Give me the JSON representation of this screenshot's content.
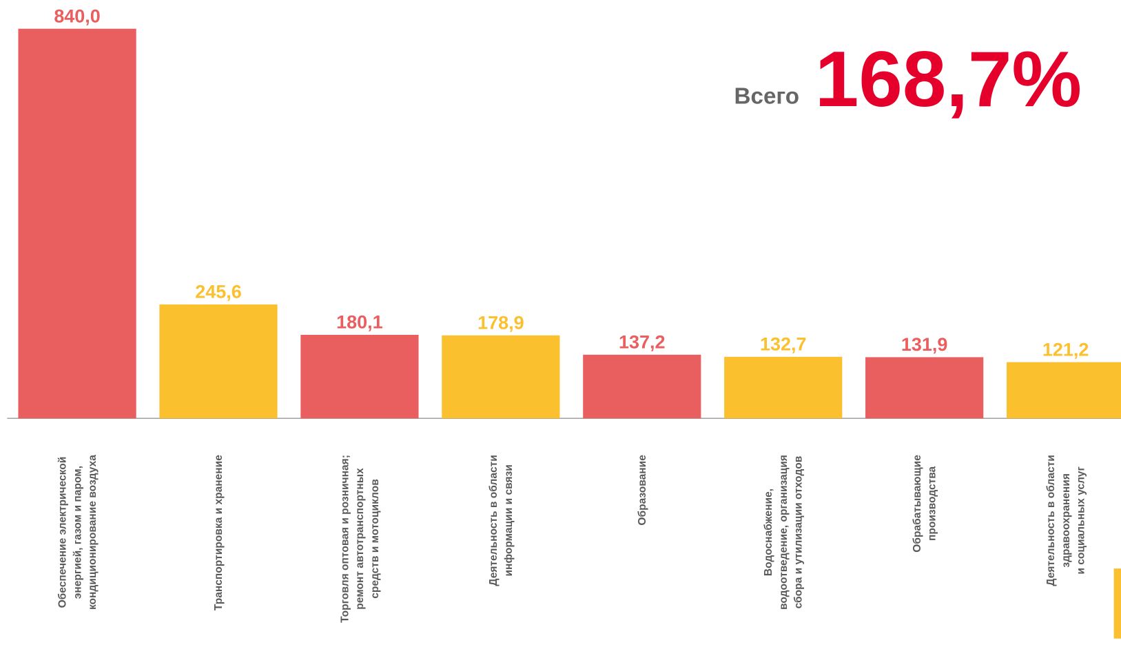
{
  "chart_data": {
    "type": "bar",
    "total_label": "Всего",
    "total_value": "168,7%",
    "categories": [
      [
        "Обеспечение электрической",
        "энергией, газом и паром,",
        "кондиционирование воздуха"
      ],
      [
        "Транспортировка и хранение"
      ],
      [
        "Торговля оптовая и розничная;",
        "ремонт автотранспортных",
        "средств  и мотоциклов"
      ],
      [
        "Деятельность  в области",
        "информации и связи"
      ],
      [
        "Образование"
      ],
      [
        "Водоснабжение,",
        "водоотведение, организация",
        "сбора и утилизации отходов"
      ],
      [
        "Обрабатывающие",
        "производства"
      ],
      [
        "Деятельность  в области",
        "здравоохранения",
        "и социальных услуг"
      ]
    ],
    "values": [
      840.0,
      245.6,
      180.1,
      178.9,
      137.2,
      132.7,
      131.9,
      121.2
    ],
    "value_labels": [
      "840,0",
      "245,6",
      "180,1",
      "178,9",
      "137,2",
      "132,7",
      "131,9",
      "121,2"
    ],
    "colors": [
      "#E95E5F",
      "#FBC02D",
      "#E95E5F",
      "#FBC02D",
      "#E95E5F",
      "#FBC02D",
      "#E95E5F",
      "#FBC02D"
    ],
    "ylim": [
      0,
      840
    ]
  }
}
